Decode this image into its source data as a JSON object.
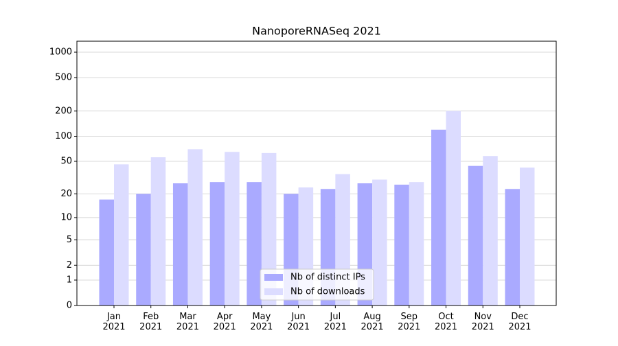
{
  "chart_data": {
    "type": "bar",
    "title": "NanoporeRNASeq 2021",
    "categories": [
      "Jan\n2021",
      "Feb\n2021",
      "Mar\n2021",
      "Apr\n2021",
      "May\n2021",
      "Jun\n2021",
      "Jul\n2021",
      "Aug\n2021",
      "Sep\n2021",
      "Oct\n2021",
      "Nov\n2021",
      "Dec\n2021"
    ],
    "series": [
      {
        "name": "Nb of distinct IPs",
        "color": "#aaaaff",
        "values": [
          17,
          20,
          27,
          28,
          28,
          20,
          23,
          27,
          26,
          120,
          44,
          23
        ]
      },
      {
        "name": "Nb of downloads",
        "color": "#dcdcff",
        "values": [
          46,
          56,
          70,
          65,
          63,
          24,
          35,
          30,
          28,
          200,
          58,
          42
        ]
      }
    ],
    "yscale": "symlog",
    "ylim": [
      0,
      1350
    ],
    "yticks": [
      0,
      1,
      2,
      5,
      10,
      20,
      50,
      100,
      200,
      500,
      1000
    ],
    "grid": true,
    "legend": "lower center"
  }
}
